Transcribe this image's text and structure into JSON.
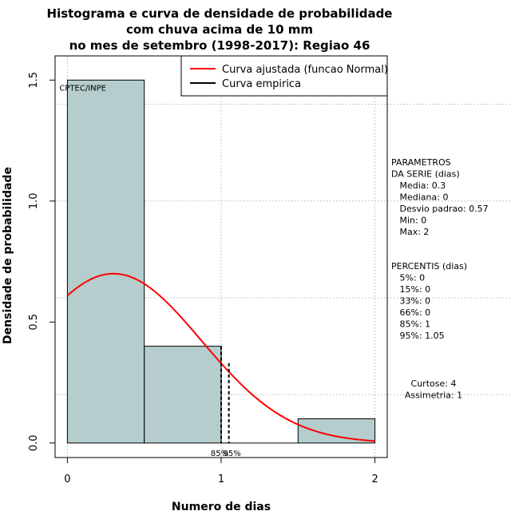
{
  "chart_data": {
    "type": "bar",
    "title_lines": [
      "Histograma e curva de densidade de probabilidade",
      "com chuva acima de 10 mm",
      "no mes de setembro (1998-2017): Regiao 46"
    ],
    "xlabel": "Numero de dias",
    "ylabel": "Densidade de probabilidade",
    "xlim": [
      -0.08,
      2.08
    ],
    "ylim": [
      -0.06,
      1.6
    ],
    "xticks": [
      0,
      1,
      2
    ],
    "xtick_labels": [
      "0",
      "1",
      "2"
    ],
    "yticks": [
      0.0,
      0.5,
      1.0,
      1.5
    ],
    "ytick_labels": [
      "0.0",
      "0.5",
      "1.0",
      "1.5"
    ],
    "grid": true,
    "bins": [
      {
        "start": 0.0,
        "end": 0.5,
        "value": 1.5
      },
      {
        "start": 0.5,
        "end": 1.0,
        "value": 0.4
      },
      {
        "start": 1.0,
        "end": 1.5,
        "value": 0.0
      },
      {
        "start": 1.5,
        "end": 2.0,
        "value": 0.1
      }
    ],
    "normal_curve": {
      "mean": 0.3,
      "sd": 0.57,
      "x_from": 0.0,
      "x_to": 2.0,
      "color": "#ff0000"
    },
    "percentile_markers": [
      {
        "x": 1.0,
        "label": "85%"
      },
      {
        "x": 1.05,
        "label": "95%"
      }
    ],
    "watermark": "CPTEC/INPE",
    "legend": {
      "position": "top-right",
      "entries": [
        {
          "label": "Curva ajustada (funcao Normal)",
          "color": "#ff0000"
        },
        {
          "label": "Curva empirica",
          "color": "#000000"
        }
      ]
    },
    "bar_color": "#b5cdcd"
  },
  "stats": {
    "params_lines": [
      "PARAMETROS",
      "DA SERIE (dias)",
      "   Media: 0.3",
      "   Mediana: 0",
      "   Desvio padrao: 0.57",
      "   Min: 0",
      "   Max: 2"
    ],
    "percentis_lines": [
      "PERCENTIS (dias)",
      "   5%: 0",
      "   15%: 0",
      "   33%: 0",
      "   66%: 0",
      "   85%: 1",
      "   95%: 1.05"
    ],
    "shape_lines": [
      "Curtose: 4",
      "Assimetria: 1"
    ]
  }
}
